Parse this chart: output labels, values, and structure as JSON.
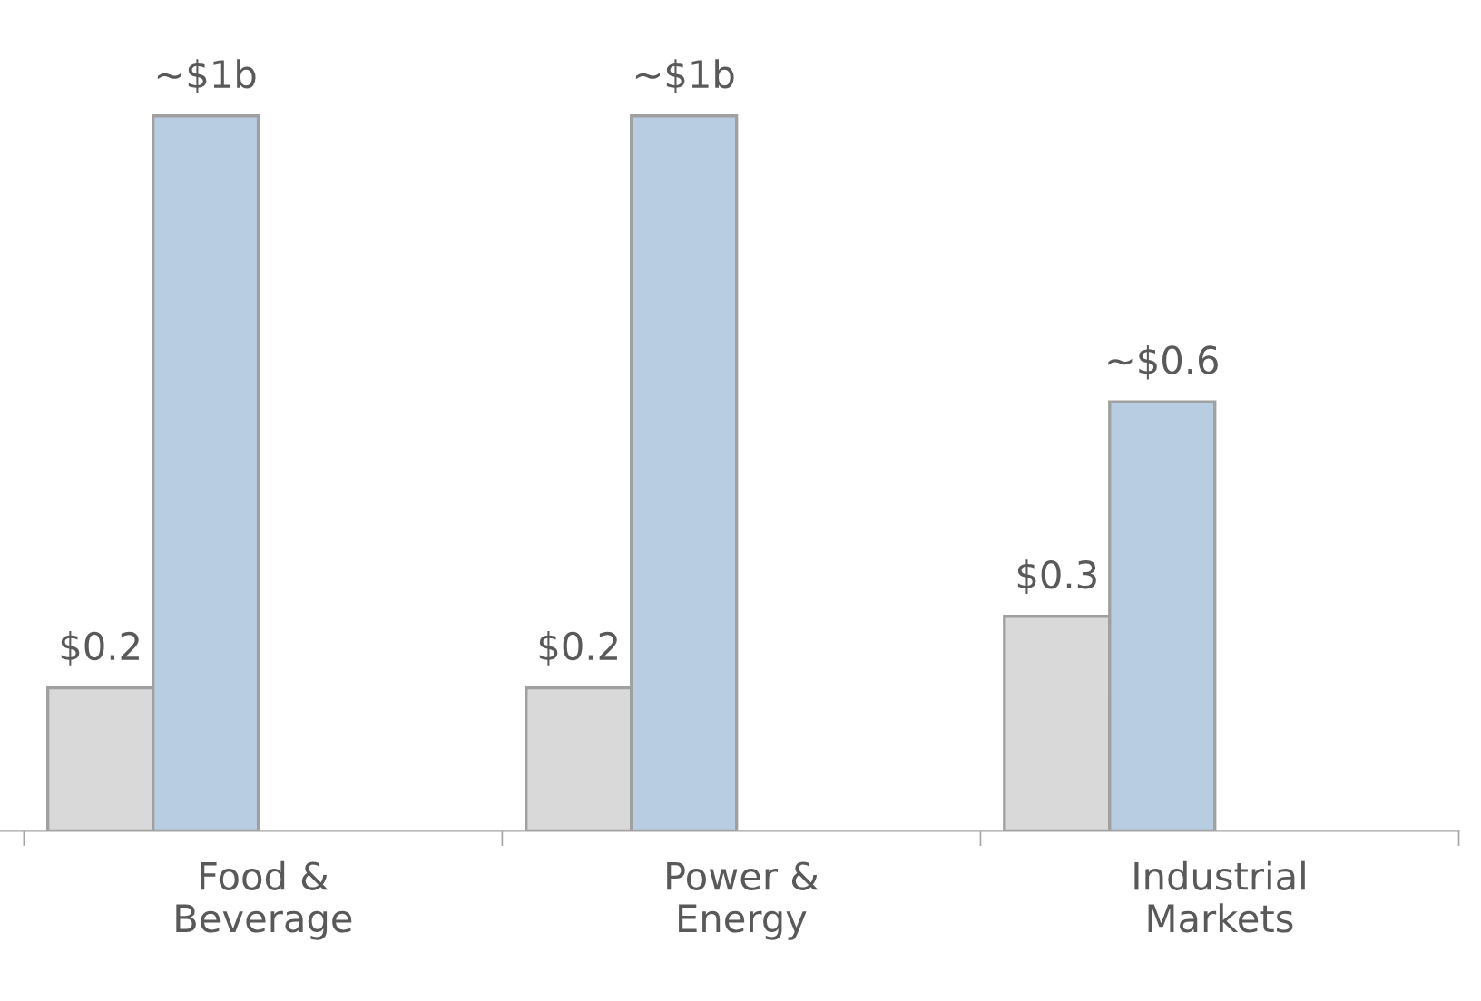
{
  "chart_data": {
    "type": "bar",
    "categories": [
      "Food &\nBeverage",
      "Power &\nEnergy",
      "Industrial\nMarkets"
    ],
    "series": [
      {
        "color": "#d9d9d9",
        "values": [
          0.2,
          0.2,
          0.3
        ],
        "value_labels": [
          "$0.2",
          "$0.2",
          "$0.3"
        ]
      },
      {
        "color": "#b9cde2",
        "values": [
          1,
          1,
          0.6
        ],
        "value_labels": [
          "~$1b",
          "~$1b",
          "~$0.6"
        ]
      }
    ],
    "grid": false,
    "legend": false
  }
}
